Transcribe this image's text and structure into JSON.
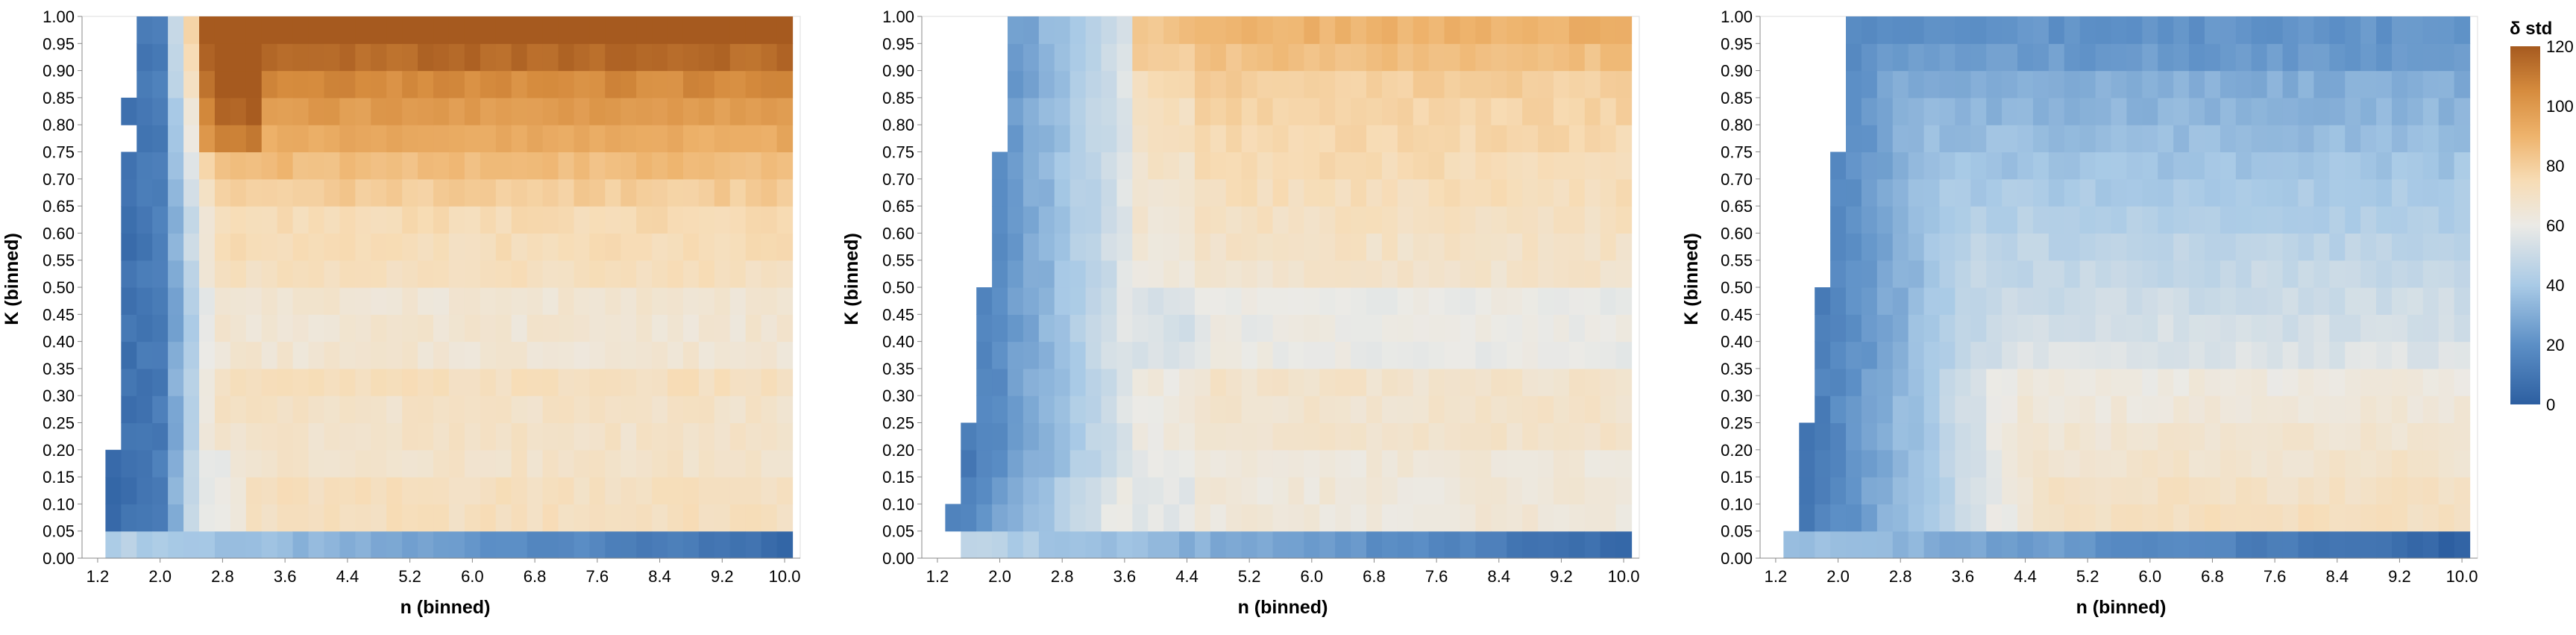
{
  "colors": {
    "scale_stops": [
      {
        "v": 0,
        "c": "#2d5fa1"
      },
      {
        "v": 20,
        "c": "#5c8fc6"
      },
      {
        "v": 40,
        "c": "#a9cae6"
      },
      {
        "v": 60,
        "c": "#ebeae6"
      },
      {
        "v": 75,
        "c": "#f7dcb5"
      },
      {
        "v": 90,
        "c": "#eeb36c"
      },
      {
        "v": 105,
        "c": "#d68c3e"
      },
      {
        "v": 120,
        "c": "#a65a1f"
      }
    ],
    "axis": "#888888",
    "frame": "#dddddd"
  },
  "legend": {
    "title": "δ std",
    "labels": [
      "120",
      "100",
      "80",
      "60",
      "40",
      "20",
      "0"
    ],
    "values": [
      120,
      100,
      80,
      60,
      40,
      20,
      0
    ],
    "domain": [
      0,
      120
    ]
  },
  "chart_data": [
    {
      "type": "heatmap",
      "xlabel": "n (binned)",
      "ylabel": "K (binned)",
      "x_tick_labels": [
        "1.2",
        "2.0",
        "2.8",
        "3.6",
        "4.4",
        "5.2",
        "6.0",
        "6.8",
        "7.6",
        "8.4",
        "9.2",
        "10.0"
      ],
      "y_tick_labels": [
        "0.00",
        "0.05",
        "0.10",
        "0.15",
        "0.20",
        "0.25",
        "0.30",
        "0.35",
        "0.40",
        "0.45",
        "0.50",
        "0.55",
        "0.60",
        "0.65",
        "0.70",
        "0.75",
        "0.80",
        "0.85",
        "0.90",
        "0.95",
        "1.00"
      ],
      "xlim": [
        1.0,
        10.2
      ],
      "ylim": [
        0,
        1.0
      ],
      "n_bins": [
        1.4,
        1.6,
        1.8,
        2.0,
        2.2,
        2.4,
        2.6,
        2.8,
        3.0,
        3.2,
        3.4,
        3.6,
        3.8,
        4.0,
        4.2,
        4.4,
        4.6,
        4.8,
        5.0,
        5.2,
        5.4,
        5.6,
        5.8,
        6.0,
        6.2,
        6.4,
        6.6,
        6.8,
        7.0,
        7.2,
        7.4,
        7.6,
        7.8,
        8.0,
        8.2,
        8.4,
        8.6,
        8.8,
        9.0,
        9.2,
        9.4,
        9.6,
        9.8,
        10.0
      ],
      "k_bins": [
        0.0,
        0.05,
        0.1,
        0.15,
        0.2,
        0.25,
        0.3,
        0.35,
        0.4,
        0.45,
        0.5,
        0.55,
        0.6,
        0.65,
        0.7,
        0.75,
        0.8,
        0.85,
        0.9,
        0.95
      ],
      "k_start_by_n": [
        4,
        15,
        15,
        0,
        0,
        0,
        0,
        0,
        0,
        0,
        0,
        0,
        0,
        0,
        0,
        0,
        0,
        0,
        0,
        0,
        0,
        0,
        0,
        0,
        0,
        0,
        0,
        0,
        0,
        0,
        0,
        0,
        0,
        0,
        0,
        0,
        0,
        0,
        0,
        0,
        0,
        0,
        0,
        0
      ],
      "extra_cells": [
        [
          1.6,
          0.8
        ]
      ],
      "rows_k": {
        "0.00": [
          30,
          30,
          36,
          40,
          42,
          40,
          38,
          36,
          35,
          34,
          33,
          32,
          31,
          30,
          29,
          28,
          27,
          26,
          25,
          24,
          23,
          22,
          21,
          20,
          19,
          18,
          17,
          16,
          15,
          14,
          13,
          12,
          11,
          10,
          9,
          8,
          7,
          6,
          5,
          4,
          3,
          2,
          1,
          0
        ],
        "0.05": [
          10,
          20,
          35,
          48,
          52,
          56,
          58,
          60,
          61,
          62,
          63,
          63,
          64,
          64,
          64,
          64,
          64,
          64,
          64,
          64,
          64,
          64,
          64,
          64,
          64,
          64,
          64,
          64,
          64,
          64,
          64,
          64,
          64,
          64,
          64,
          64,
          64,
          64,
          64,
          64,
          64,
          64,
          64,
          64
        ],
        "0.10": [
          6,
          18,
          32,
          46,
          54,
          58,
          62,
          64,
          65,
          66,
          66,
          67,
          67,
          67,
          67,
          67,
          67,
          67,
          67,
          67,
          67,
          67,
          67,
          67,
          67,
          67,
          67,
          67,
          67,
          67,
          67,
          67,
          67,
          67,
          67,
          67,
          67,
          67,
          67,
          67,
          67,
          67,
          67,
          67
        ],
        "0.15": [
          4,
          14,
          30,
          44,
          52,
          58,
          62,
          66,
          68,
          69,
          70,
          70,
          71,
          71,
          71,
          71,
          71,
          71,
          71,
          71,
          71,
          71,
          71,
          71,
          71,
          71,
          71,
          71,
          71,
          71,
          71,
          71,
          71,
          71,
          71,
          71,
          71,
          71,
          71,
          71,
          71,
          71,
          71,
          71
        ]
      },
      "panel": "left"
    },
    {
      "type": "heatmap",
      "xlabel": "n (binned)",
      "ylabel": "K (binned)",
      "x_tick_labels": [
        "1.2",
        "2.0",
        "2.8",
        "3.6",
        "4.4",
        "5.2",
        "6.0",
        "6.8",
        "7.6",
        "8.4",
        "9.2",
        "10.0"
      ],
      "y_tick_labels": [
        "0.00",
        "0.05",
        "0.10",
        "0.15",
        "0.20",
        "0.25",
        "0.30",
        "0.35",
        "0.40",
        "0.45",
        "0.50",
        "0.55",
        "0.60",
        "0.65",
        "0.70",
        "0.75",
        "0.80",
        "0.85",
        "0.90",
        "0.95",
        "1.00"
      ],
      "xlim": [
        1.0,
        10.2
      ],
      "ylim": [
        0,
        1.0
      ],
      "n_bins": [
        1.4,
        1.6,
        1.8,
        2.0,
        2.2,
        2.4,
        2.6,
        2.8,
        3.0,
        3.2,
        3.4,
        3.6,
        3.8,
        4.0,
        4.2,
        4.4,
        4.6,
        4.8,
        5.0,
        5.2,
        5.4,
        5.6,
        5.8,
        6.0,
        6.2,
        6.4,
        6.6,
        6.8,
        7.0,
        7.2,
        7.4,
        7.6,
        7.8,
        8.0,
        8.2,
        8.4,
        8.6,
        8.8,
        9.0,
        9.2,
        9.4,
        9.6,
        9.8,
        10.0
      ],
      "k_bins": [
        0.0,
        0.05,
        0.1,
        0.15,
        0.2,
        0.25,
        0.3,
        0.35,
        0.4,
        0.45,
        0.5,
        0.55,
        0.6,
        0.65,
        0.7,
        0.75,
        0.8,
        0.85,
        0.9,
        0.95
      ],
      "k_start_by_n": [
        0,
        2,
        5,
        10,
        15,
        17,
        0,
        0,
        0,
        0,
        0,
        0,
        0,
        0,
        0,
        0,
        0,
        0,
        0,
        0,
        0,
        0,
        0,
        0,
        0,
        0,
        0,
        0,
        0,
        0,
        0,
        0,
        0,
        0,
        0,
        0,
        0,
        0,
        0,
        0,
        0,
        0,
        0,
        0
      ],
      "panel": "middle"
    },
    {
      "type": "heatmap",
      "xlabel": "n (binned)",
      "ylabel": "K (binned)",
      "x_tick_labels": [
        "1.2",
        "2.0",
        "2.8",
        "3.6",
        "4.4",
        "5.2",
        "6.0",
        "6.8",
        "7.6",
        "8.4",
        "9.2",
        "10.0"
      ],
      "y_tick_labels": [
        "0.00",
        "0.05",
        "0.10",
        "0.15",
        "0.20",
        "0.25",
        "0.30",
        "0.35",
        "0.40",
        "0.45",
        "0.50",
        "0.55",
        "0.60",
        "0.65",
        "0.70",
        "0.75",
        "0.80",
        "0.85",
        "0.90",
        "0.95",
        "1.00"
      ],
      "xlim": [
        1.0,
        10.2
      ],
      "ylim": [
        0,
        1.0
      ],
      "n_bins": [
        1.4,
        1.6,
        1.8,
        2.0,
        2.2,
        2.4,
        2.6,
        2.8,
        3.0,
        3.2,
        3.4,
        3.6,
        3.8,
        4.0,
        4.2,
        4.4,
        4.6,
        4.8,
        5.0,
        5.2,
        5.4,
        5.6,
        5.8,
        6.0,
        6.2,
        6.4,
        6.6,
        6.8,
        7.0,
        7.2,
        7.4,
        7.6,
        7.8,
        8.0,
        8.2,
        8.4,
        8.6,
        8.8,
        9.0,
        9.2,
        9.4,
        9.6,
        9.8,
        10.0
      ],
      "k_bins": [
        0.0,
        0.05,
        0.1,
        0.15,
        0.2,
        0.25,
        0.3,
        0.35,
        0.4,
        0.45,
        0.5,
        0.55,
        0.6,
        0.65,
        0.7,
        0.75,
        0.8,
        0.85,
        0.9,
        0.95
      ],
      "k_start_by_n": [
        0,
        2,
        5,
        10,
        15,
        17,
        0,
        0,
        0,
        0,
        0,
        0,
        0,
        0,
        0,
        0,
        0,
        0,
        0,
        0,
        0,
        0,
        0,
        0,
        0,
        0,
        0,
        0,
        0,
        0,
        0,
        0,
        0,
        0,
        0,
        0,
        0,
        0,
        0,
        0,
        0,
        0,
        0,
        0
      ],
      "panel": "right"
    }
  ]
}
